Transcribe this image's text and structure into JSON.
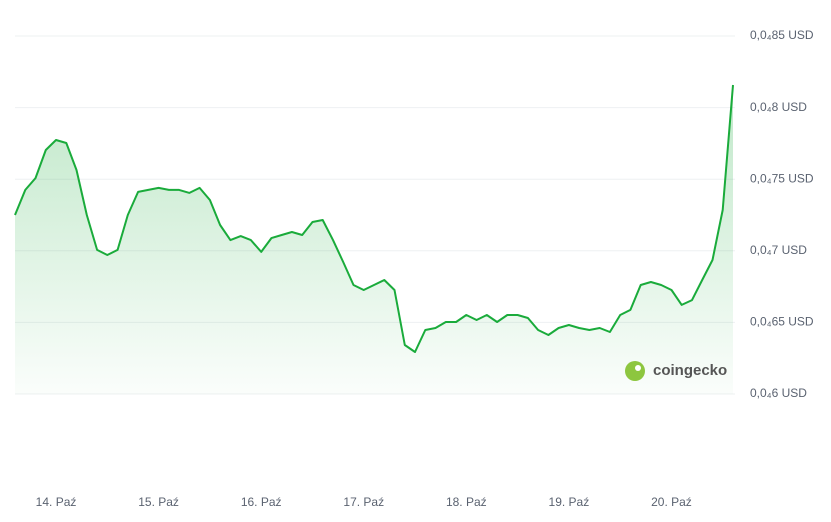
{
  "chart_data": {
    "type": "line",
    "categories": [
      null,
      null,
      null,
      null,
      "14. Paź",
      null,
      null,
      null,
      null,
      null,
      null,
      null,
      null,
      null,
      "15. Paź",
      null,
      null,
      null,
      null,
      null,
      null,
      null,
      null,
      null,
      "16. Paź",
      null,
      null,
      null,
      null,
      null,
      null,
      null,
      null,
      null,
      "17. Paź",
      null,
      null,
      null,
      null,
      null,
      null,
      null,
      null,
      null,
      "18. Paź",
      null,
      null,
      null,
      null,
      null,
      null,
      null,
      null,
      null,
      "19. Paź",
      null,
      null,
      null,
      null,
      null,
      null,
      null,
      null,
      null,
      "20. Paź",
      null,
      null,
      null,
      null,
      null,
      null
    ],
    "series": [
      {
        "color": "#1aab3b",
        "values": [
          7.25e-05,
          7.425e-05,
          7.508e-05,
          7.704e-05,
          7.774e-05,
          7.753e-05,
          7.564e-05,
          7.25e-05,
          7.006e-05,
          6.971e-05,
          7.006e-05,
          7.25e-05,
          7.411e-05,
          7.425e-05,
          7.439e-05,
          7.425e-05,
          7.425e-05,
          7.404e-05,
          7.439e-05,
          7.355e-05,
          7.18e-05,
          7.075e-05,
          7.103e-05,
          7.075e-05,
          6.992e-05,
          7.089e-05,
          7.11e-05,
          7.131e-05,
          7.11e-05,
          7.201e-05,
          7.215e-05,
          7.075e-05,
          6.922e-05,
          6.761e-05,
          6.726e-05,
          6.761e-05,
          6.796e-05,
          6.726e-05,
          6.342e-05,
          6.293e-05,
          6.447e-05,
          6.461e-05,
          6.503e-05,
          6.503e-05,
          6.552e-05,
          6.517e-05,
          6.552e-05,
          6.503e-05,
          6.552e-05,
          6.552e-05,
          6.531e-05,
          6.447e-05,
          6.412e-05,
          6.461e-05,
          6.482e-05,
          6.461e-05,
          6.447e-05,
          6.461e-05,
          6.433e-05,
          6.552e-05,
          6.587e-05,
          6.761e-05,
          6.782e-05,
          6.761e-05,
          6.726e-05,
          6.622e-05,
          6.656e-05,
          6.796e-05,
          6.936e-05,
          7.285e-05,
          8.158e-05
        ]
      }
    ],
    "ylim": [
      6e-05,
      8.5e-05
    ],
    "yticks": [
      {
        "value": 6e-05,
        "label": "0,0₄6 USD"
      },
      {
        "value": 6.5e-05,
        "label": "0,0₄65 USD"
      },
      {
        "value": 7e-05,
        "label": "0,0₄7 USD"
      },
      {
        "value": 7.5e-05,
        "label": "0,0₄75 USD"
      },
      {
        "value": 8e-05,
        "label": "0,0₄8 USD"
      },
      {
        "value": 8.5e-05,
        "label": "0,0₄85 USD"
      }
    ],
    "grid": true,
    "watermark": "coingecko"
  }
}
